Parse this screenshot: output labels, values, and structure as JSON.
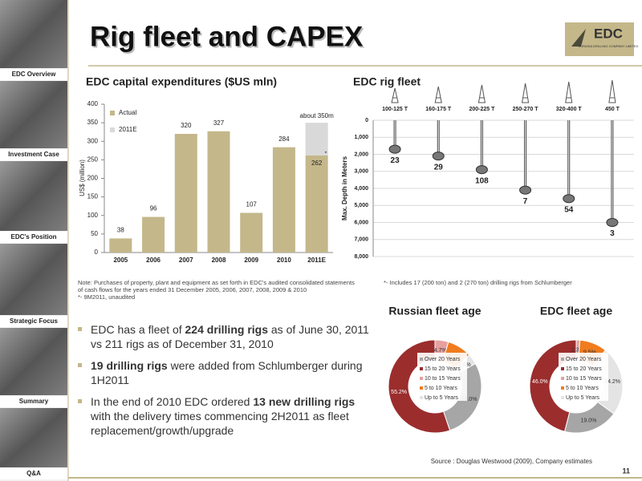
{
  "title": "Rig fleet and CAPEX",
  "logo": {
    "name": "EDC",
    "subtitle": "EURASIA DRILLING COMPANY LIMITED"
  },
  "sidebar": [
    "EDC Overview",
    "Investment Case",
    "EDC's Position",
    "Strategic Focus",
    "Summary",
    "Q&A"
  ],
  "chart_data": [
    {
      "type": "bar",
      "title": "EDC capital expenditures ($US mln)",
      "y_label": "US$ (million)",
      "categories": [
        "2005",
        "2006",
        "2007",
        "2008",
        "2009",
        "2010",
        "2011E"
      ],
      "series": [
        {
          "name": "Actual",
          "color": "#c4b78a",
          "values": [
            38,
            96,
            320,
            327,
            107,
            284,
            262
          ]
        },
        {
          "name": "2011E",
          "color": "#d9d9d9",
          "values": [
            null,
            null,
            null,
            null,
            null,
            null,
            88
          ]
        }
      ],
      "annotation": "about 350m",
      "footnote_marker": "*",
      "ylim": [
        0,
        400
      ],
      "yticks": [
        0,
        50,
        100,
        150,
        200,
        250,
        300,
        350,
        400
      ],
      "legend": "top-left"
    },
    {
      "type": "rig-depth",
      "title": "EDC rig fleet",
      "y_label": "Max. Depth in Meters",
      "categories": [
        "100-125 T",
        "160-175 T",
        "200-225 T",
        "250-270 T",
        "320-400 T",
        "450 T"
      ],
      "values": [
        1700,
        2100,
        2900,
        4100,
        4600,
        6000
      ],
      "rig_counts": [
        23,
        29,
        108,
        7,
        54,
        3
      ],
      "ylim": [
        0,
        8000
      ],
      "y_inverted": true,
      "grid": true,
      "yticks": [
        0,
        {
          "value": 1000,
          "label": "1,000"
        },
        {
          "value": 2000,
          "label": "2,000"
        },
        {
          "value": 3000,
          "label": "3,000"
        },
        {
          "value": 4000,
          "label": "4,000"
        },
        {
          "value": 5000,
          "label": "5,000"
        },
        {
          "value": 6000,
          "label": "6,000"
        },
        {
          "value": 7000,
          "label": "7,000"
        },
        {
          "value": 8000,
          "label": "8,000"
        }
      ]
    },
    {
      "type": "donut",
      "title": "Russian fleet age",
      "categories": [
        "Over 20 Years",
        "15 to 20 Years",
        "10 to 15 Years",
        "5 to 10 Years",
        "Up to 5 Years"
      ],
      "values": [
        28.0,
        55.2,
        4.7,
        8.5,
        3.6
      ],
      "value_labels": [
        "28.0%",
        "55.2%",
        "4.7%",
        "8.5%",
        "3.6%"
      ],
      "colors": [
        "#a6a6a6",
        "#9b2d2d",
        "#e6a0a0",
        "#f07c1e",
        "#e4e4e4"
      ]
    },
    {
      "type": "donut",
      "title": "EDC fleet age",
      "categories": [
        "Over 20 Years",
        "15 to 20 Years",
        "10 to 15 Years",
        "5 to 10 Years",
        "Up to 5 Years"
      ],
      "values": [
        19.0,
        46.0,
        1.3,
        9.5,
        24.2
      ],
      "value_labels": [
        "19.0%",
        "46.0%",
        "1.3%",
        "9.5%",
        "24.2%"
      ],
      "colors": [
        "#a6a6a6",
        "#9b2d2d",
        "#e6a0a0",
        "#f07c1e",
        "#e4e4e4"
      ]
    }
  ],
  "notes": {
    "capex": "Note: Purchases of property, plant and equipment as set forth in EDC's audited consolidated statements of cash flows for the years ended 31 December 2005, 2006, 2007, 2008, 2009 & 2010",
    "capex_star": "*- 9M2011, unaudited",
    "rigs": "*- Includes 17 (200 ton) and 2 (270 ton) drilling rigs from Schlumberger"
  },
  "bullets": [
    [
      {
        "text": "EDC has a fleet of ",
        "bold": false
      },
      {
        "text": "224 drilling rigs",
        "bold": true
      },
      {
        "text": " as of June 30, 2011 vs 211 rigs as of December 31, 2010",
        "bold": false
      }
    ],
    [
      {
        "text": "19 drilling rigs",
        "bold": true
      },
      {
        "text": " were added from Schlumberger during 1H2011",
        "bold": false
      }
    ],
    [
      {
        "text": "In the end of 2010 EDC ordered ",
        "bold": false
      },
      {
        "text": "13 new drilling rigs",
        "bold": true
      },
      {
        "text": " with the delivery times commencing 2H2011 as fleet replacement/growth/upgrade",
        "bold": false
      }
    ]
  ],
  "source": "Source : Douglas  Westwood (2009), Company estimates",
  "page_number": "11"
}
